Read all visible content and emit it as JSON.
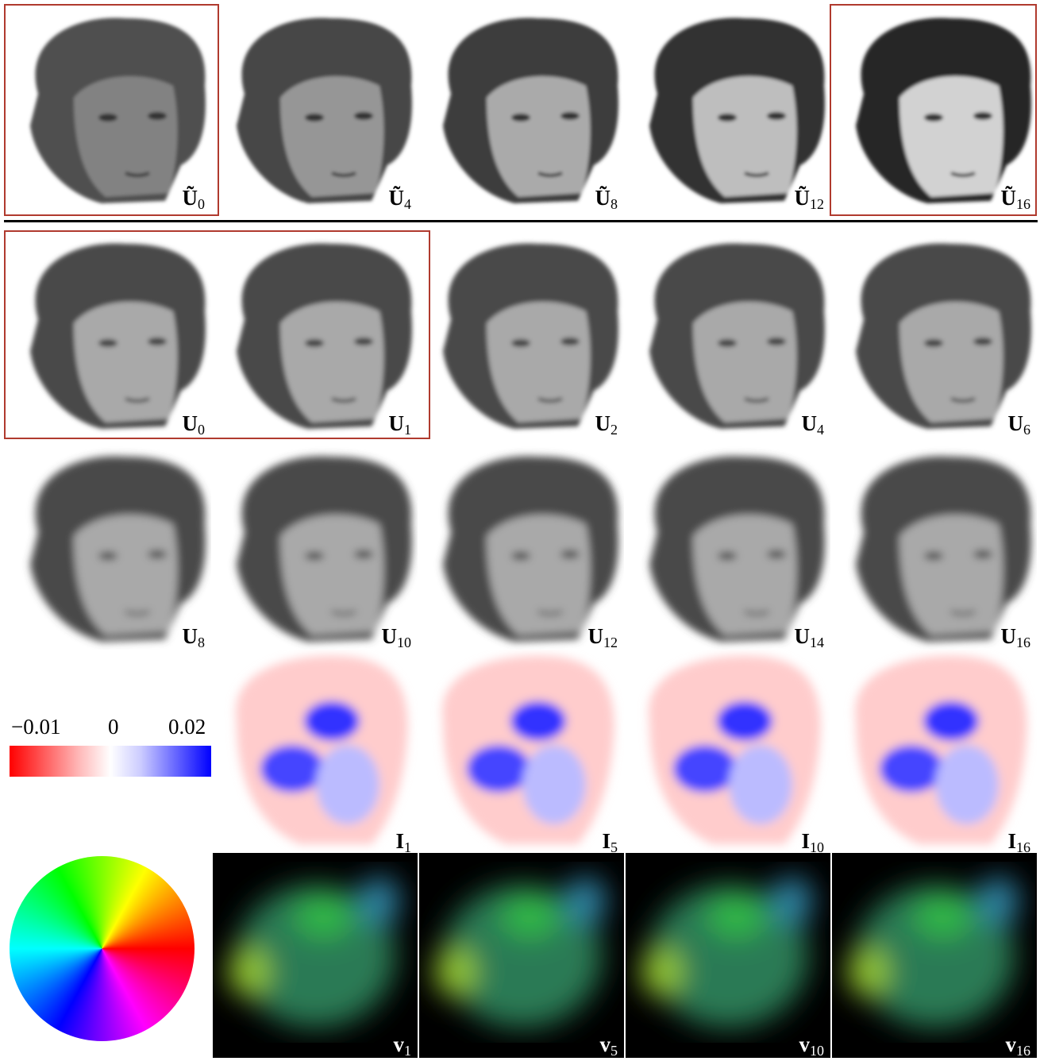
{
  "rows": [
    {
      "panels": [
        {
          "symbol": "Ũ",
          "sub": "0"
        },
        {
          "symbol": "Ũ",
          "sub": "4"
        },
        {
          "symbol": "Ũ",
          "sub": "8"
        },
        {
          "symbol": "Ũ",
          "sub": "12"
        },
        {
          "symbol": "Ũ",
          "sub": "16"
        }
      ]
    },
    {
      "panels": [
        {
          "symbol": "U",
          "sub": "0"
        },
        {
          "symbol": "U",
          "sub": "1"
        },
        {
          "symbol": "U",
          "sub": "2"
        },
        {
          "symbol": "U",
          "sub": "4"
        },
        {
          "symbol": "U",
          "sub": "6"
        }
      ]
    },
    {
      "panels": [
        {
          "symbol": "U",
          "sub": "8"
        },
        {
          "symbol": "U",
          "sub": "10"
        },
        {
          "symbol": "U",
          "sub": "12"
        },
        {
          "symbol": "U",
          "sub": "14"
        },
        {
          "symbol": "U",
          "sub": "16"
        }
      ]
    },
    {
      "panels": [
        {
          "symbol": "I",
          "sub": "1"
        },
        {
          "symbol": "I",
          "sub": "5"
        },
        {
          "symbol": "I",
          "sub": "10"
        },
        {
          "symbol": "I",
          "sub": "16"
        }
      ]
    },
    {
      "panels": [
        {
          "symbol": "v",
          "sub": "1"
        },
        {
          "symbol": "v",
          "sub": "5"
        },
        {
          "symbol": "v",
          "sub": "10"
        },
        {
          "symbol": "v",
          "sub": "16"
        }
      ]
    }
  ],
  "colorbar": {
    "labels": [
      "−0.01",
      "0",
      "0.02"
    ]
  }
}
